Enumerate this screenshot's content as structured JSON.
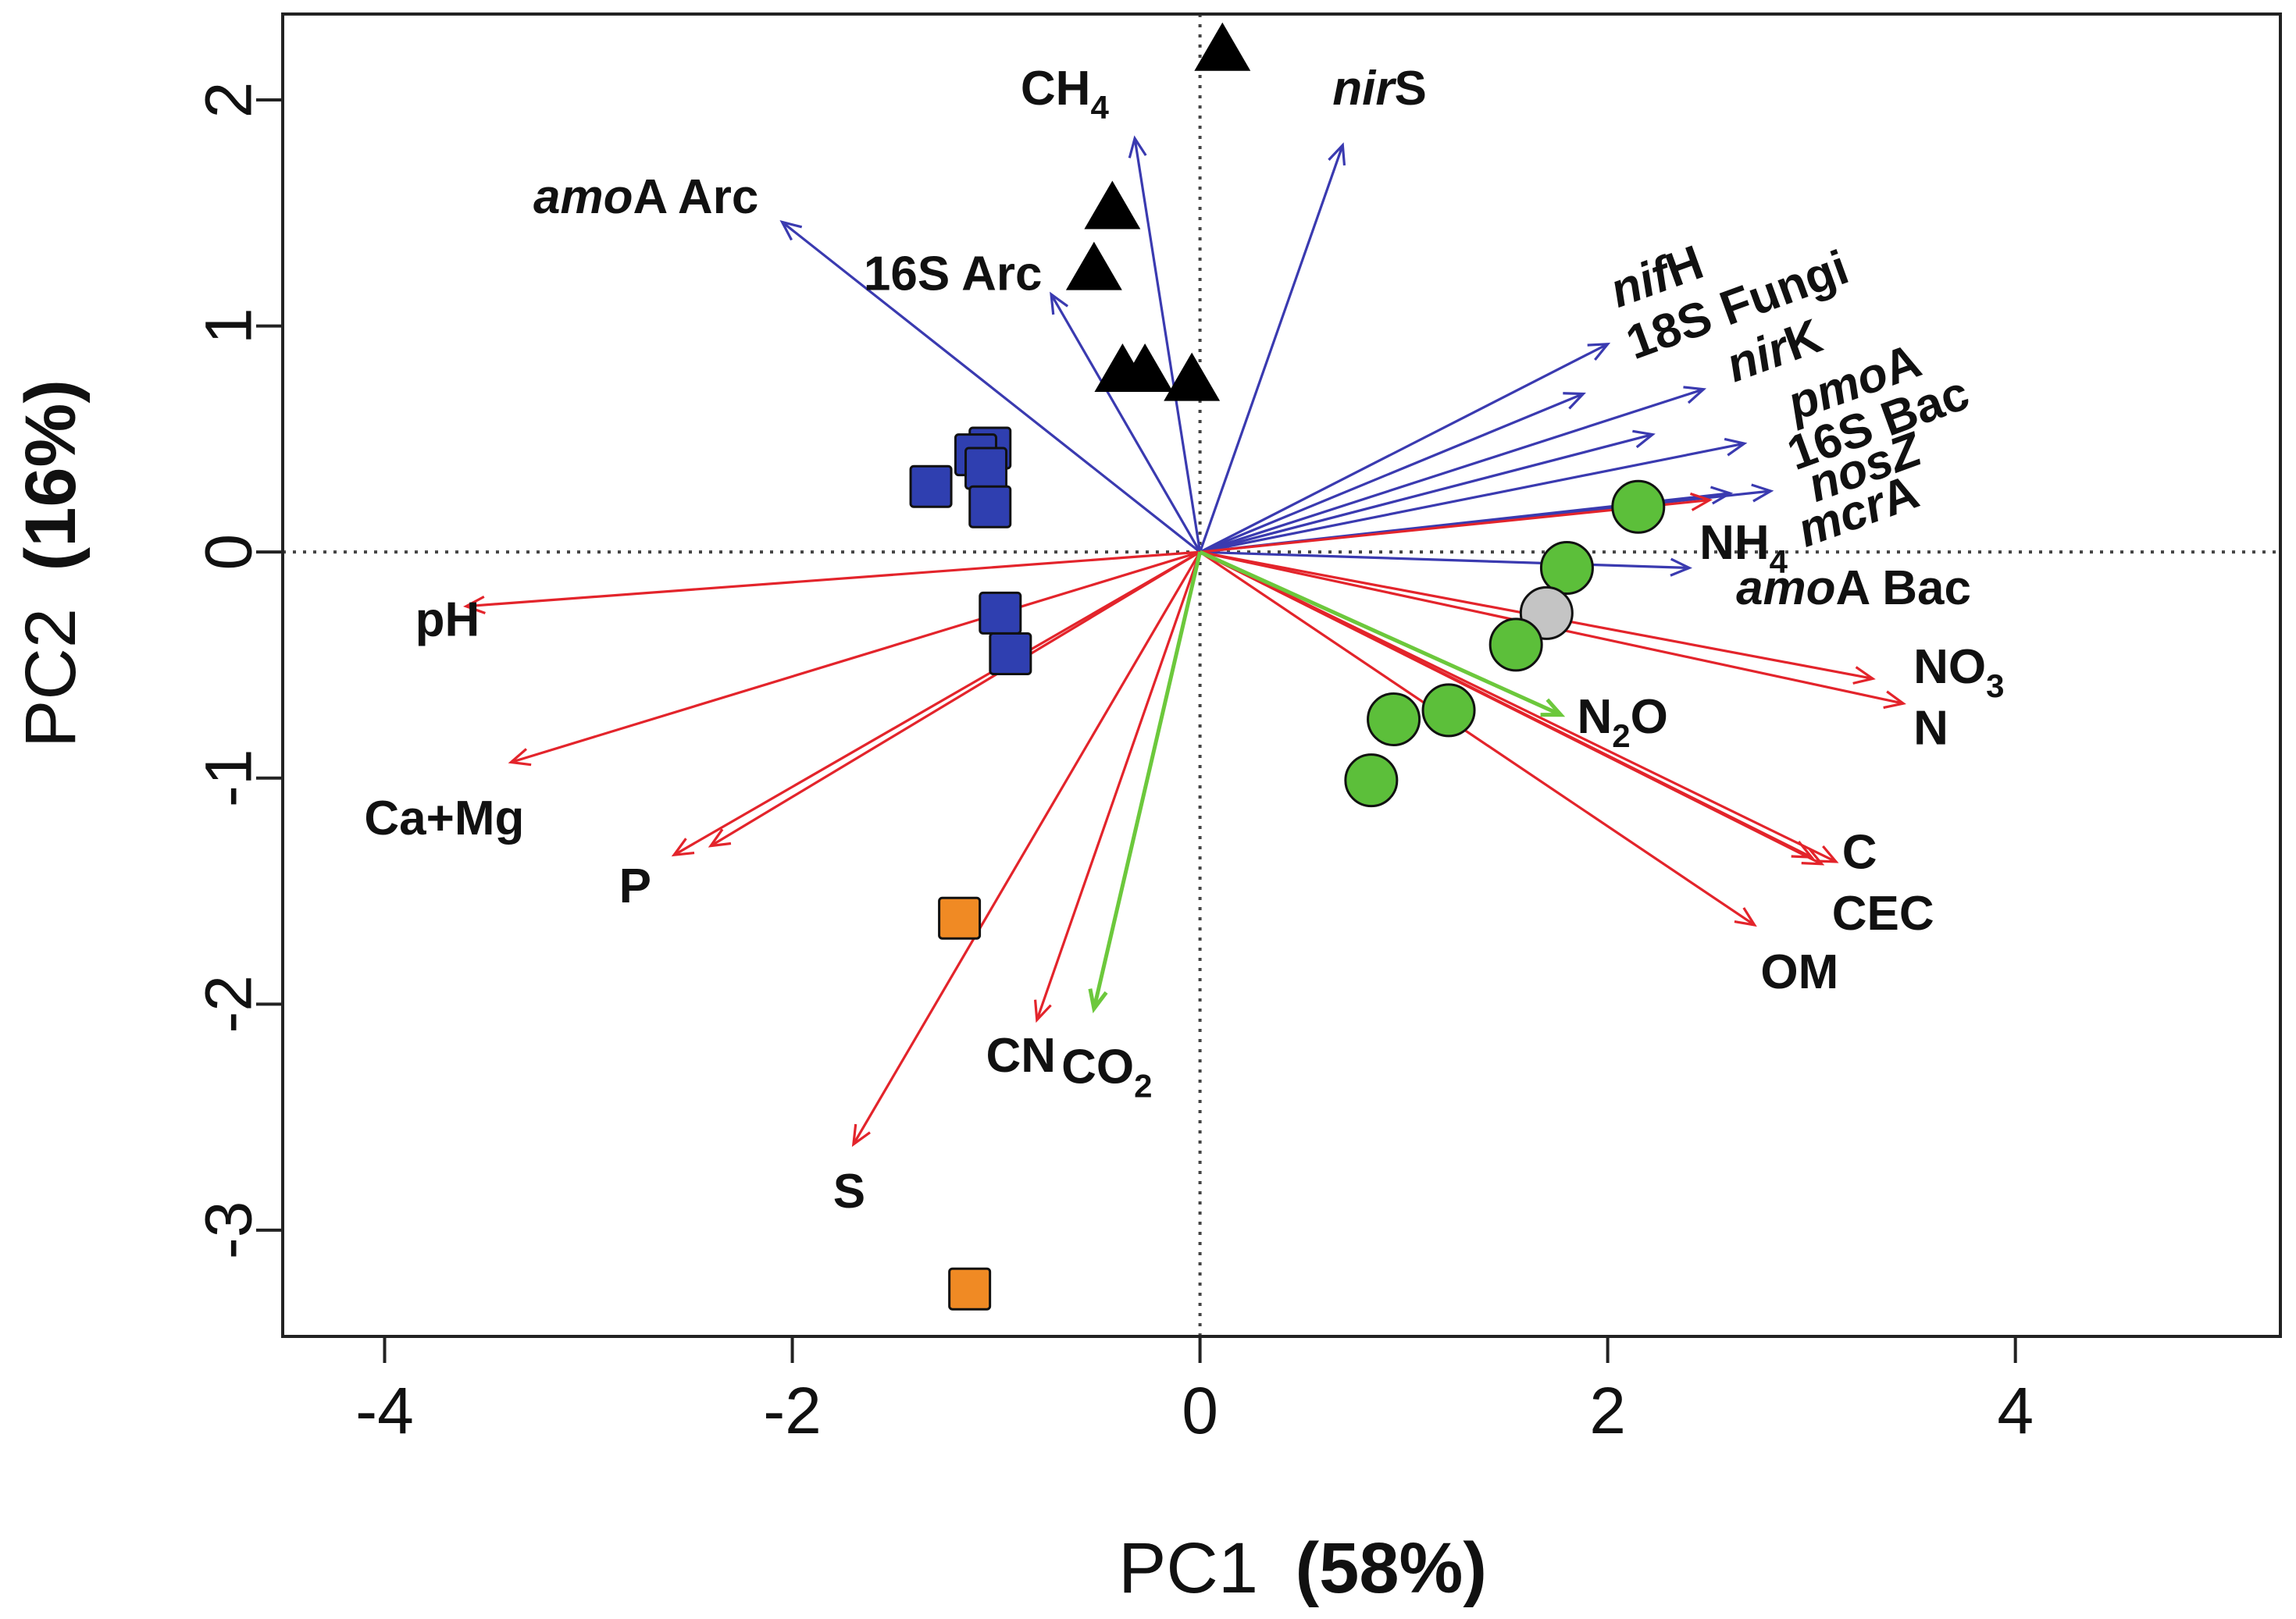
{
  "chart_data": {
    "type": "scatter",
    "subtype": "pca-biplot",
    "title": "",
    "xlabel": {
      "text": "PC1",
      "pct": "(58%)"
    },
    "ylabel": {
      "text": "PC2",
      "pct": "(16%)"
    },
    "xlim": [
      -4.5,
      5.3
    ],
    "ylim": [
      -3.47,
      2.38
    ],
    "x_ticks": [
      -4,
      -2,
      0,
      2,
      4
    ],
    "x_tick_labels": [
      "-4",
      "-2",
      "0",
      "2",
      "4"
    ],
    "y_ticks": [
      -3,
      -2,
      -1,
      0,
      1,
      2
    ],
    "y_tick_labels": [
      "-3",
      "-2",
      "-1",
      "0",
      "1",
      "2"
    ],
    "reference_lines": {
      "x": 0,
      "y": 0,
      "style": "dotted"
    },
    "grid": false,
    "legend": "none",
    "colors": {
      "microbial_vector": "#3a3ab0",
      "soil_vector": "#e3242b",
      "gas_vector": "#6cc83c",
      "triangle": "#000000",
      "blue_square": "#2f3fb0",
      "orange_square": "#f08a24",
      "green_circle": "#5cbf3a",
      "grey_circle": "#c4c4c4"
    },
    "points": [
      {
        "group": "triangle",
        "x": 0.11,
        "y": 2.21
      },
      {
        "group": "triangle",
        "x": -0.43,
        "y": 1.51
      },
      {
        "group": "triangle",
        "x": -0.52,
        "y": 1.24
      },
      {
        "group": "triangle",
        "x": -0.38,
        "y": 0.79
      },
      {
        "group": "triangle",
        "x": -0.27,
        "y": 0.79
      },
      {
        "group": "triangle",
        "x": -0.04,
        "y": 0.75
      },
      {
        "group": "blue_square",
        "x": -1.03,
        "y": 0.46
      },
      {
        "group": "blue_square",
        "x": -1.1,
        "y": 0.43
      },
      {
        "group": "blue_square",
        "x": -1.05,
        "y": 0.37
      },
      {
        "group": "blue_square",
        "x": -1.32,
        "y": 0.29
      },
      {
        "group": "blue_square",
        "x": -1.03,
        "y": 0.2
      },
      {
        "group": "blue_square",
        "x": -0.98,
        "y": -0.27
      },
      {
        "group": "blue_square",
        "x": -0.93,
        "y": -0.45
      },
      {
        "group": "orange_square",
        "x": -1.18,
        "y": -1.62
      },
      {
        "group": "orange_square",
        "x": -1.13,
        "y": -3.26
      },
      {
        "group": "green_circle",
        "x": 2.15,
        "y": 0.2
      },
      {
        "group": "green_circle",
        "x": 1.8,
        "y": -0.07
      },
      {
        "group": "grey_circle",
        "x": 1.7,
        "y": -0.27
      },
      {
        "group": "green_circle",
        "x": 1.55,
        "y": -0.41
      },
      {
        "group": "green_circle",
        "x": 1.22,
        "y": -0.7
      },
      {
        "group": "green_circle",
        "x": 0.95,
        "y": -0.74
      },
      {
        "group": "green_circle",
        "x": 0.84,
        "y": -1.01
      }
    ],
    "vectors": [
      {
        "group": "microbial",
        "label": "CH4",
        "x": -0.32,
        "y": 1.83,
        "lx": -0.88,
        "ly": 1.98
      },
      {
        "group": "microbial",
        "label": "nirS",
        "x": 0.7,
        "y": 1.8,
        "lx": 0.65,
        "ly": 1.98
      },
      {
        "group": "microbial",
        "label": "amoA Arc",
        "x": -2.05,
        "y": 1.46,
        "lx": -3.27,
        "ly": 1.5
      },
      {
        "group": "microbial",
        "label": "16S Arc",
        "x": -0.73,
        "y": 1.14,
        "lx": -1.65,
        "ly": 1.16
      },
      {
        "group": "microbial",
        "label": "nifH",
        "x": 2.0,
        "y": 0.92,
        "lx": 2.05,
        "ly": 1.08,
        "rot": -20
      },
      {
        "group": "microbial",
        "label": "18S Fungi",
        "x": 1.88,
        "y": 0.7,
        "lx": 2.13,
        "ly": 0.85,
        "rot": -20
      },
      {
        "group": "microbial",
        "label": "nirK",
        "x": 2.47,
        "y": 0.72,
        "lx": 2.62,
        "ly": 0.75,
        "rot": -20
      },
      {
        "group": "microbial",
        "label": "pmoA",
        "x": 2.22,
        "y": 0.52,
        "lx": 2.92,
        "ly": 0.58,
        "rot": -20
      },
      {
        "group": "microbial",
        "label": "16S Bac",
        "x": 2.67,
        "y": 0.48,
        "lx": 2.92,
        "ly": 0.36,
        "rot": -20
      },
      {
        "group": "microbial",
        "label": "nosZ",
        "x": 2.8,
        "y": 0.27,
        "lx": 3.02,
        "ly": 0.22,
        "rot": -20
      },
      {
        "group": "microbial",
        "label": "mcrA",
        "x": 2.6,
        "y": 0.26,
        "lx": 2.97,
        "ly": 0.02,
        "rot": -20
      },
      {
        "group": "microbial",
        "label": "amoA Bac",
        "x": 2.4,
        "y": -0.07,
        "lx": 2.63,
        "ly": -0.23
      },
      {
        "group": "soil",
        "label": "NH4",
        "x": 2.5,
        "y": 0.23,
        "lx": 2.45,
        "ly": -0.03
      },
      {
        "group": "soil",
        "label": "pH",
        "x": -3.6,
        "y": -0.24,
        "lx": -3.85,
        "ly": -0.37
      },
      {
        "group": "soil",
        "label": "Ca+Mg",
        "x": -3.38,
        "y": -0.93,
        "lx": -4.1,
        "ly": -1.25
      },
      {
        "group": "soil",
        "label": "P",
        "x": -2.58,
        "y": -1.34,
        "lx": -2.85,
        "ly": -1.55
      },
      {
        "group": "soil",
        "label": "S",
        "x": -1.7,
        "y": -2.62,
        "lx": -1.8,
        "ly": -2.9
      },
      {
        "group": "soil",
        "label": "CN",
        "x": -0.8,
        "y": -2.07,
        "lx": -1.05,
        "ly": -2.3
      },
      {
        "group": "soil",
        "label": "NO3",
        "x": 3.3,
        "y": -0.56,
        "lx": 3.5,
        "ly": -0.58
      },
      {
        "group": "soil",
        "label": "N",
        "x": 3.45,
        "y": -0.67,
        "lx": 3.5,
        "ly": -0.85
      },
      {
        "group": "soil",
        "label": "C",
        "x": 3.12,
        "y": -1.37,
        "lx": 3.15,
        "ly": -1.4
      },
      {
        "group": "soil",
        "label": "CEC",
        "x": 3.05,
        "y": -1.38,
        "lx": 3.1,
        "ly": -1.67
      },
      {
        "group": "soil",
        "label": "OM",
        "x": 2.72,
        "y": -1.65,
        "lx": 2.75,
        "ly": -1.93
      },
      {
        "group": "soil",
        "label": "_ray_a",
        "x": 3.0,
        "y": -1.35,
        "lx": null,
        "ly": null
      },
      {
        "group": "soil",
        "label": "_ray_b",
        "x": -2.4,
        "y": -1.3,
        "lx": null,
        "ly": null
      },
      {
        "group": "gas",
        "label": "N2O",
        "x": 1.77,
        "y": -0.72,
        "lx": 1.85,
        "ly": -0.8
      },
      {
        "group": "gas",
        "label": "CO2",
        "x": -0.52,
        "y": -2.02,
        "lx": -0.68,
        "ly": -2.35
      }
    ],
    "vector_labels": [
      {
        "key": "CH4",
        "parts": [
          {
            "t": "CH"
          },
          {
            "t": "4",
            "sub": true
          }
        ]
      },
      {
        "key": "nirS",
        "parts": [
          {
            "t": "nir",
            "it": true
          },
          {
            "t": "S"
          }
        ]
      },
      {
        "key": "amoA Arc",
        "parts": [
          {
            "t": "amo",
            "it": true
          },
          {
            "t": "A Arc"
          }
        ]
      },
      {
        "key": "16S Arc",
        "parts": [
          {
            "t": "16S Arc"
          }
        ]
      },
      {
        "key": "nifH",
        "parts": [
          {
            "t": "nif",
            "it": true
          },
          {
            "t": "H"
          }
        ]
      },
      {
        "key": "18S Fungi",
        "parts": [
          {
            "t": "18S Fungi"
          }
        ]
      },
      {
        "key": "nirK",
        "parts": [
          {
            "t": "nir",
            "it": true
          },
          {
            "t": "K"
          }
        ]
      },
      {
        "key": "pmoA",
        "parts": [
          {
            "t": "pmo",
            "it": true
          },
          {
            "t": "A"
          }
        ]
      },
      {
        "key": "16S Bac",
        "parts": [
          {
            "t": "16S Bac"
          }
        ]
      },
      {
        "key": "nosZ",
        "parts": [
          {
            "t": "nosZ",
            "it": true
          }
        ]
      },
      {
        "key": "mcrA",
        "parts": [
          {
            "t": "mcr",
            "it": true
          },
          {
            "t": "A"
          }
        ]
      },
      {
        "key": "amoA Bac",
        "parts": [
          {
            "t": "amo",
            "it": true
          },
          {
            "t": "A Bac"
          }
        ]
      },
      {
        "key": "NH4",
        "parts": [
          {
            "t": "NH"
          },
          {
            "t": "4",
            "sub": true
          }
        ]
      },
      {
        "key": "pH",
        "parts": [
          {
            "t": "pH"
          }
        ]
      },
      {
        "key": "Ca+Mg",
        "parts": [
          {
            "t": "Ca+Mg"
          }
        ]
      },
      {
        "key": "P",
        "parts": [
          {
            "t": "P"
          }
        ]
      },
      {
        "key": "S",
        "parts": [
          {
            "t": "S"
          }
        ]
      },
      {
        "key": "CN",
        "parts": [
          {
            "t": "CN"
          }
        ]
      },
      {
        "key": "NO3",
        "parts": [
          {
            "t": "NO"
          },
          {
            "t": "3",
            "sub": true
          }
        ]
      },
      {
        "key": "N",
        "parts": [
          {
            "t": "N"
          }
        ]
      },
      {
        "key": "C",
        "parts": [
          {
            "t": "C"
          }
        ]
      },
      {
        "key": "CEC",
        "parts": [
          {
            "t": "CEC"
          }
        ]
      },
      {
        "key": "OM",
        "parts": [
          {
            "t": "OM"
          }
        ]
      },
      {
        "key": "N2O",
        "parts": [
          {
            "t": "N"
          },
          {
            "t": "2",
            "sub": true
          },
          {
            "t": "O"
          }
        ]
      },
      {
        "key": "CO2",
        "parts": [
          {
            "t": "CO"
          },
          {
            "t": "2",
            "sub": true
          }
        ]
      }
    ]
  }
}
